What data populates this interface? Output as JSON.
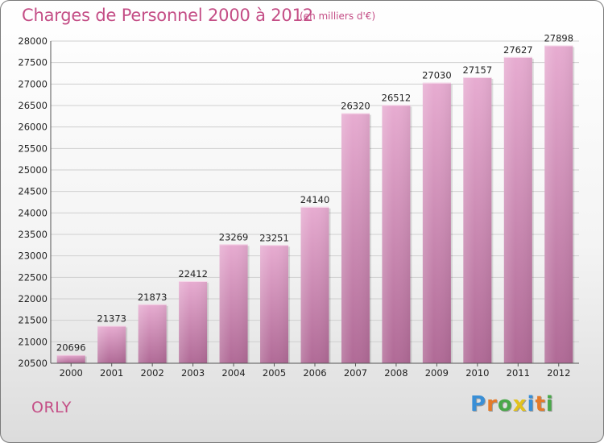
{
  "header": {
    "title": "Charges de Personnel 2000 à 2012",
    "subtitle": "(en milliers d'€)"
  },
  "footer": {
    "town": "ORLY",
    "logo": "Proxiti"
  },
  "colors": {
    "title": "#c44e86",
    "bar_top": "#e7acd1",
    "bar_bottom": "#b06a96",
    "logo_letters": [
      "#3a8fd6",
      "#e47b2a",
      "#4aa84a",
      "#e2c21e",
      "#3a8fd6",
      "#e47b2a",
      "#4aa84a"
    ]
  },
  "chart_data": {
    "type": "bar",
    "title": "Charges de Personnel 2000 à 2012",
    "unit_note": "(en milliers d'€)",
    "xlabel": "",
    "ylabel": "",
    "categories": [
      "2000",
      "2001",
      "2002",
      "2003",
      "2004",
      "2005",
      "2006",
      "2007",
      "2008",
      "2009",
      "2010",
      "2011",
      "2012"
    ],
    "values": [
      20696,
      21373,
      21873,
      22412,
      23269,
      23251,
      24140,
      26320,
      26512,
      27030,
      27157,
      27627,
      27898
    ],
    "ylim": [
      20500,
      28000
    ],
    "yticks": [
      20500,
      21000,
      21500,
      22000,
      22500,
      23000,
      23500,
      24000,
      24500,
      25000,
      25500,
      26000,
      26500,
      27000,
      27500,
      28000
    ],
    "grid": true,
    "legend": "none"
  }
}
